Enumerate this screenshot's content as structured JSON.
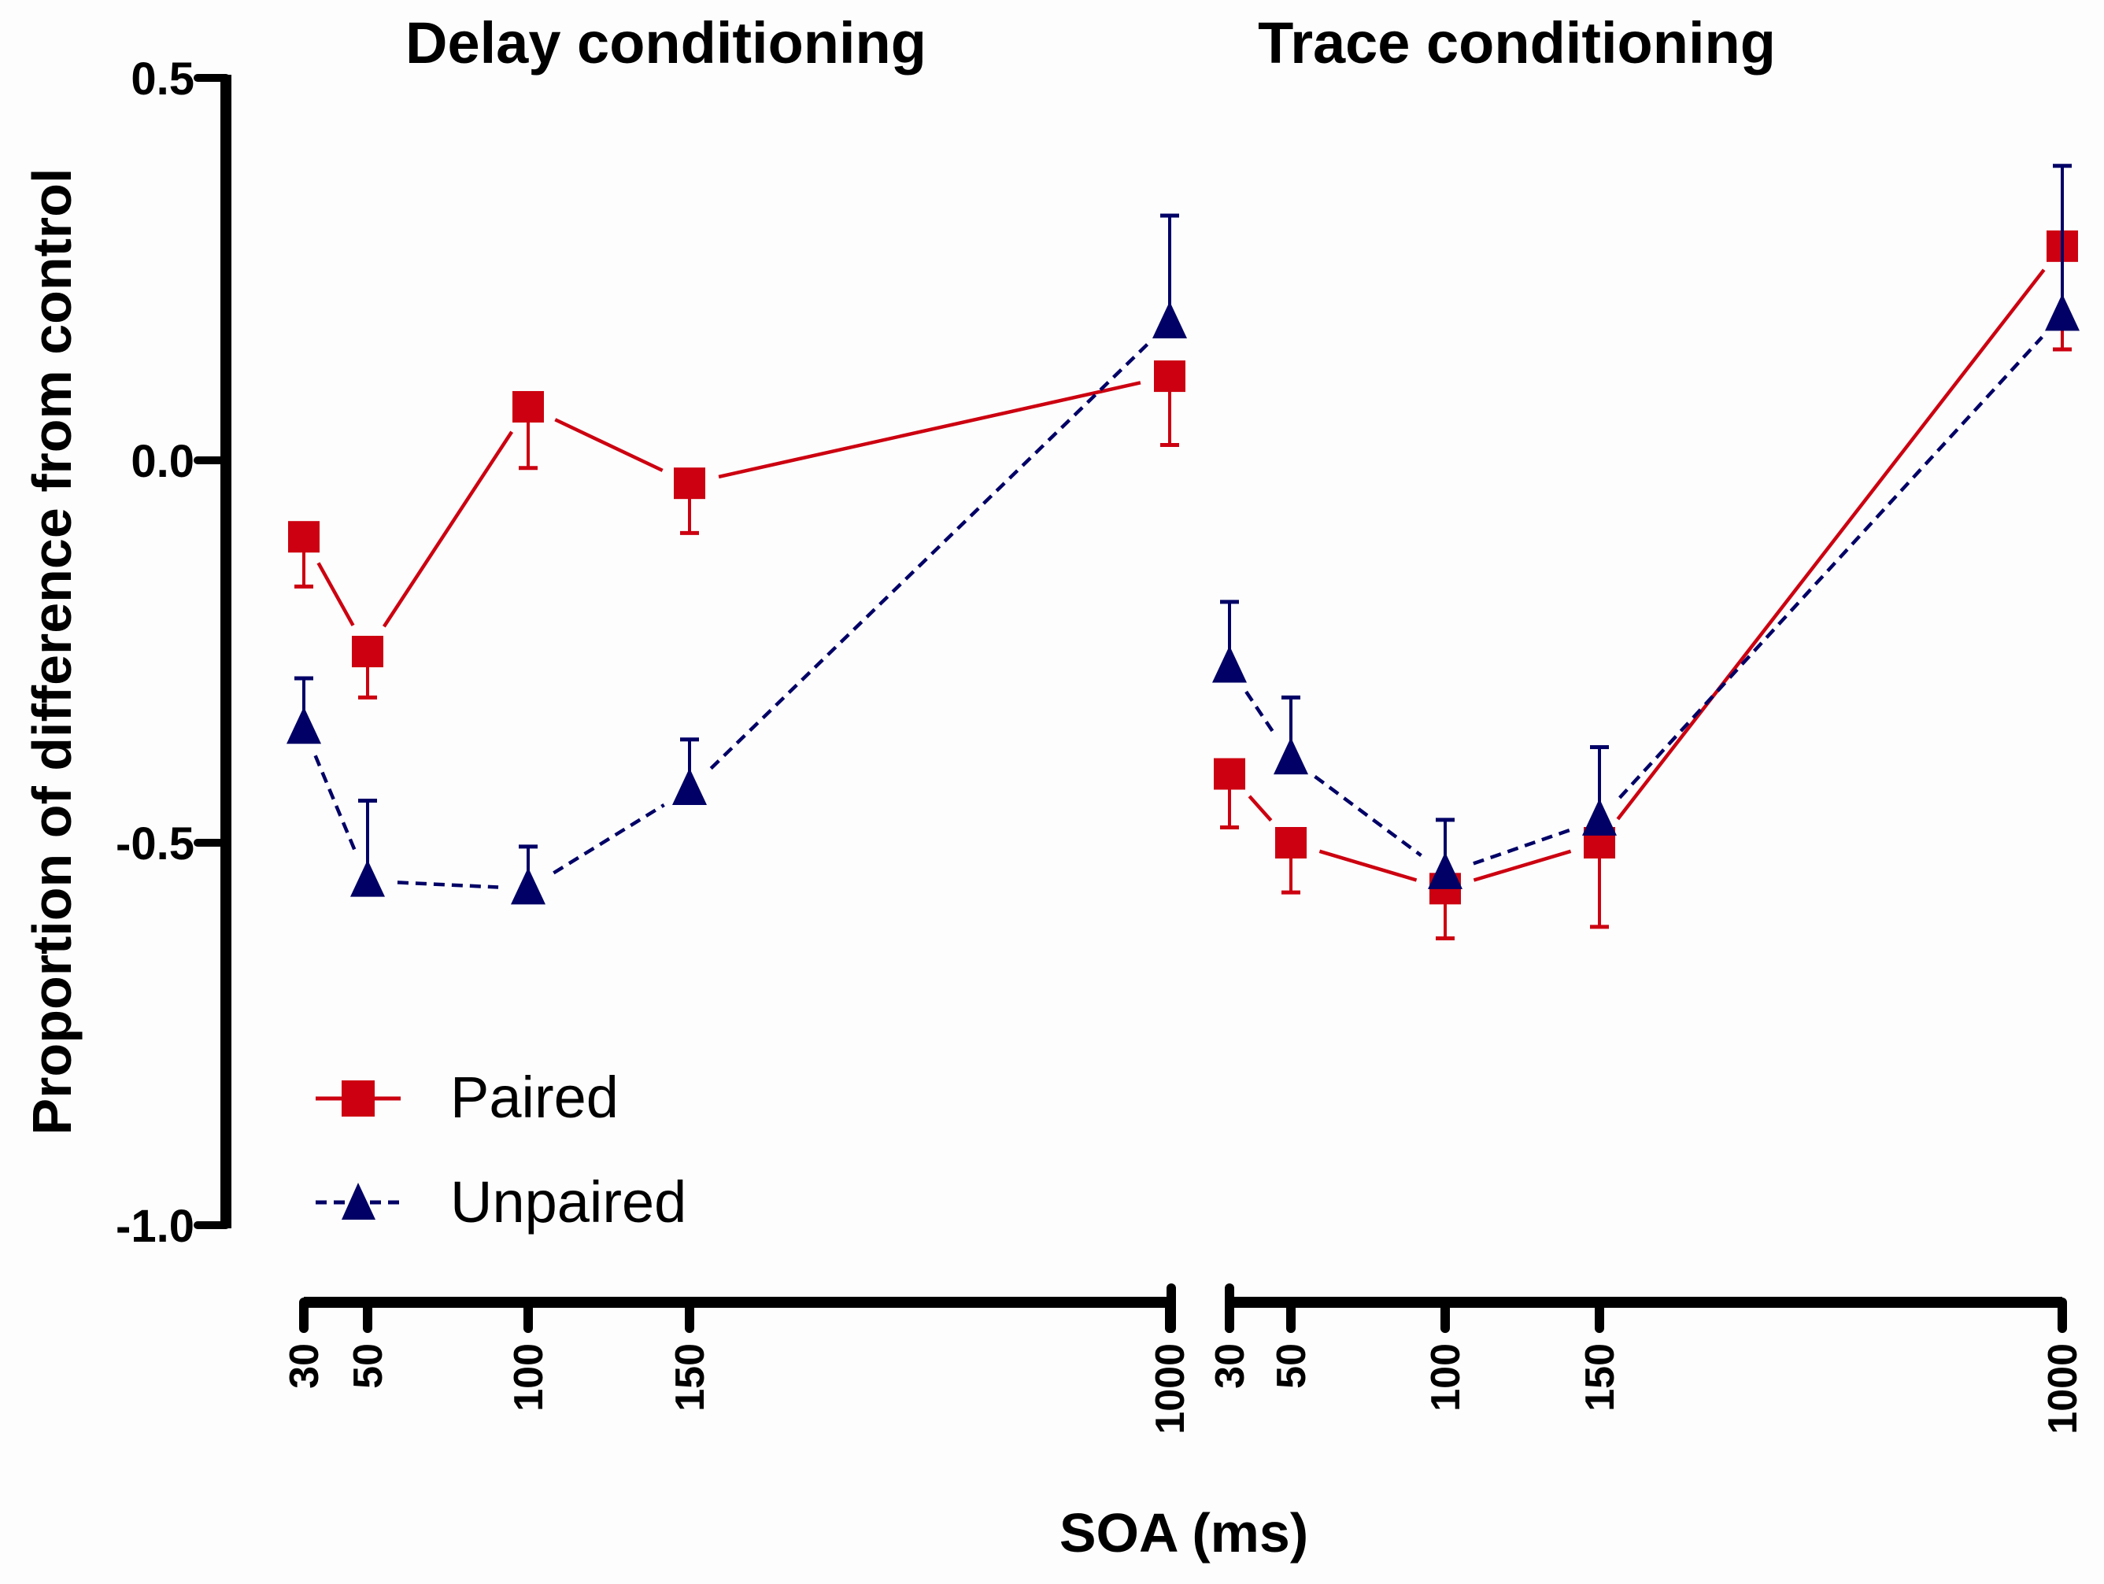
{
  "chart_data": {
    "type": "line",
    "title": "",
    "ylabel": "Proportion of difference from control",
    "xlabel": "SOA (ms)",
    "ylim": [
      -1.0,
      0.5
    ],
    "yticks": [
      0.5,
      0.0,
      -0.5,
      -1.0
    ],
    "ytick_labels": [
      "0.5",
      "0.0",
      "-0.5",
      "-1.0"
    ],
    "grid": false,
    "legend_position": "bottom-left",
    "panels": [
      {
        "title": "Delay conditioning",
        "x": [
          30,
          50,
          100,
          150,
          1000
        ],
        "xtick_labels": [
          "30",
          "50",
          "100",
          "150",
          "1000"
        ],
        "series": [
          {
            "name": "Paired",
            "color": "#cc0010",
            "marker": "square",
            "line": "solid",
            "values": [
              -0.1,
              -0.25,
              0.07,
              -0.03,
              0.11
            ],
            "sem": [
              0.065,
              0.06,
              0.08,
              0.065,
              0.09
            ],
            "error_direction": "down"
          },
          {
            "name": "Unpaired",
            "color": "#000066",
            "marker": "triangle",
            "line": "dashed",
            "values": [
              -0.35,
              -0.55,
              -0.56,
              -0.43,
              0.18
            ],
            "sem": [
              0.065,
              0.105,
              0.055,
              0.065,
              0.14
            ],
            "error_direction": "up"
          }
        ]
      },
      {
        "title": "Trace conditioning",
        "x": [
          30,
          50,
          100,
          150,
          1000
        ],
        "xtick_labels": [
          "30",
          "50",
          "100",
          "150",
          "1000"
        ],
        "series": [
          {
            "name": "Paired",
            "color": "#cc0010",
            "marker": "square",
            "line": "solid",
            "values": [
              -0.41,
              -0.5,
              -0.56,
              -0.5,
              0.28
            ],
            "sem": [
              0.07,
              0.065,
              0.065,
              0.11,
              0.135
            ],
            "error_direction": "down"
          },
          {
            "name": "Unpaired",
            "color": "#000066",
            "marker": "triangle",
            "line": "dashed",
            "values": [
              -0.27,
              -0.39,
              -0.54,
              -0.47,
              0.19
            ],
            "sem": [
              0.085,
              0.08,
              0.07,
              0.095,
              0.195
            ],
            "error_direction": "up"
          }
        ]
      }
    ],
    "legend": [
      {
        "label": "Paired",
        "color": "#cc0010",
        "marker": "square",
        "line": "solid"
      },
      {
        "label": "Unpaired",
        "color": "#000066",
        "marker": "triangle",
        "line": "dashed"
      }
    ]
  }
}
